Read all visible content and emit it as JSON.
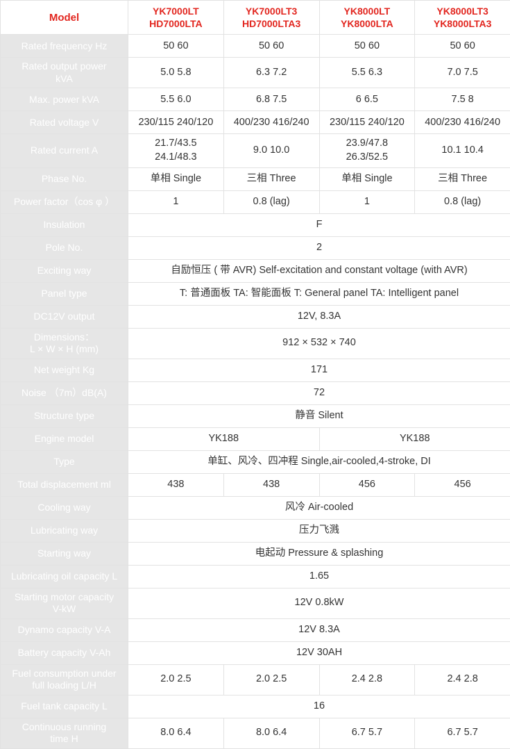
{
  "header": {
    "model": "Model",
    "cols": [
      "YK7000LT\nHD7000LTA",
      "YK7000LT3\nHD7000LTA3",
      "YK8000LT\nYK8000LTA",
      "YK8000LT3\nYK8000LTA3"
    ]
  },
  "rows": {
    "rated_freq": {
      "label": "Rated frequency  Hz",
      "cells": [
        "50    60",
        "50    60",
        "50    60",
        "50    60"
      ]
    },
    "rated_out_power": {
      "label": "Rated output power\nkVA",
      "cells": [
        "5.0    5.8",
        "6.3    7.2",
        "5.5    6.3",
        "7.0    7.5"
      ]
    },
    "max_power": {
      "label": "Max. power  kVA",
      "cells": [
        "5.5    6.0",
        "6.8    7.5",
        "6     6.5",
        "7.5     8"
      ]
    },
    "rated_voltage": {
      "label": "Rated voltage  V",
      "cells": [
        "230/115  240/120",
        "400/230   416/240",
        "230/115  240/120",
        "400/230   416/240"
      ]
    },
    "rated_current": {
      "label": "Rated current   A",
      "cells": [
        "21.7/43.5\n24.1/48.3",
        "9.0    10.0",
        "23.9/47.8\n26.3/52.5",
        "10.1   10.4"
      ]
    },
    "phase_no": {
      "label": "Phase No.",
      "cells": [
        "单相 Single",
        "三相 Three",
        "单相 Single",
        "三相 Three"
      ]
    },
    "power_factor": {
      "label": "Power factor（cos φ ）",
      "cells": [
        "1",
        "0.8 (lag)",
        "1",
        "0.8 (lag)"
      ]
    },
    "insulation": {
      "label": "Insulation",
      "span": "F"
    },
    "pole_no": {
      "label": "Pole No.",
      "span": "2"
    },
    "exciting": {
      "label": "Exciting way",
      "span": "自励恒压 ( 带 AVR)  Self-excitation and constant voltage (with AVR)"
    },
    "panel_type": {
      "label": "Panel type",
      "span": "T: 普通面板 TA: 智能面板  T: General panel        TA: Intelligent panel"
    },
    "dc12v": {
      "label": "DC12V output",
      "span": "12V, 8.3A"
    },
    "dimensions": {
      "label": "Dimensions：\nL × W × H (mm)",
      "span": "912 × 532 × 740"
    },
    "net_weight": {
      "label": "Net weight Kg",
      "span": "171"
    },
    "noise": {
      "label": "Noise （7m）dB(A)",
      "span": "72"
    },
    "structure": {
      "label": "Structure type",
      "span": "静音  Silent"
    },
    "engine_model": {
      "label": "Engine model",
      "half": [
        "YK188",
        "YK188"
      ]
    },
    "type": {
      "label": "Type",
      "span": "单缸、风冷、四冲程  Single,air-cooled,4-stroke, DI"
    },
    "displacement": {
      "label": "Total displacement  ml",
      "cells": [
        "438",
        "438",
        "456",
        "456"
      ]
    },
    "cooling": {
      "label": "Cooling way",
      "span": "风冷  Air-cooled"
    },
    "lubricating": {
      "label": "Lubricating way",
      "span": "压力飞溅"
    },
    "starting": {
      "label": "Starting way",
      "span": "电起动  Pressure & splashing"
    },
    "lube_oil_cap": {
      "label": "Lubricating oil capacity L",
      "span": "1.65"
    },
    "start_motor_cap": {
      "label": "Starting motor capacity\nV-kW",
      "span": "12V  0.8kW"
    },
    "dynamo_cap": {
      "label": "Dynamo capacity V-A",
      "span": "12V  8.3A"
    },
    "battery_cap": {
      "label": "Battery capacity V-Ah",
      "span": "12V  30AH"
    },
    "fuel_cons": {
      "label": "Fuel consumption under\nfull loading  L/H",
      "cells": [
        "2.0   2.5",
        "2.0   2.5",
        "2.4   2.8",
        "2.4   2.8"
      ]
    },
    "fuel_tank_cap": {
      "label": "Fuel tank capacity  L",
      "span": "16"
    },
    "run_time": {
      "label": "Continuous running\ntime  H",
      "cells": [
        "8.0    6.4",
        "8.0    6.4",
        "6.7    5.7",
        "6.7    5.7"
      ]
    }
  },
  "order": [
    "rated_freq",
    "rated_out_power",
    "max_power",
    "rated_voltage",
    "rated_current",
    "phase_no",
    "power_factor",
    "insulation",
    "pole_no",
    "exciting",
    "panel_type",
    "dc12v",
    "dimensions",
    "net_weight",
    "noise",
    "structure",
    "engine_model",
    "type",
    "displacement",
    "cooling",
    "lubricating",
    "starting",
    "lube_oil_cap",
    "start_motor_cap",
    "dynamo_cap",
    "battery_cap",
    "fuel_cons",
    "fuel_tank_cap",
    "run_time"
  ],
  "styles": {
    "header_color": "#e2261f",
    "label_bg": "#e6e6e6",
    "label_text": "#ffffff",
    "border_color": "#e2e2e2",
    "data_text": "#333333"
  }
}
